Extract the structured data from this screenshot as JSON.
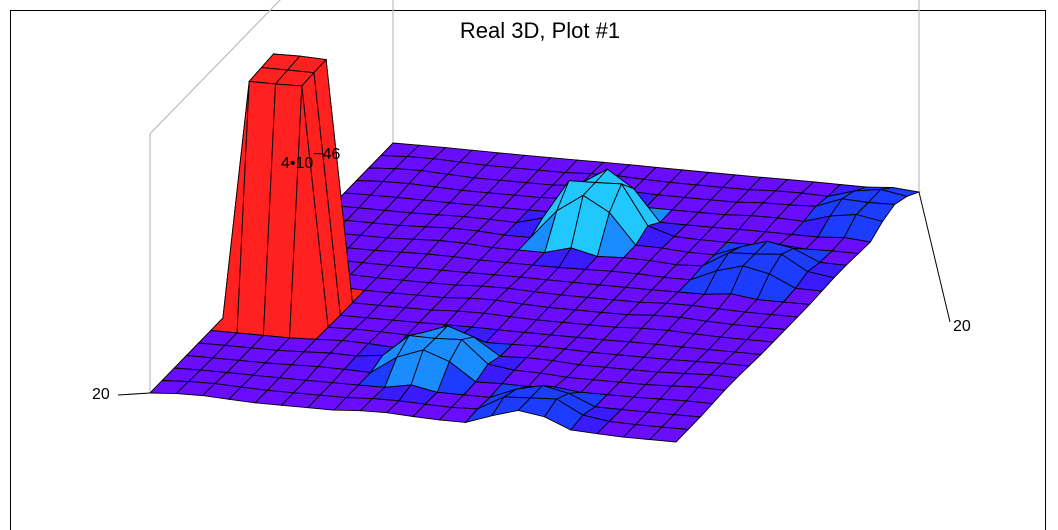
{
  "chart_data": {
    "type": "surface3d",
    "title": "Real 3D, Plot #1",
    "z_max_label": {
      "mantissa": "4•10",
      "exponent": "−46"
    },
    "x_end_label": "20",
    "y_end_label": "20",
    "grid_size": 21,
    "colormap": [
      "#6a0dff",
      "#3a1aff",
      "#1c3cff",
      "#1a8cff",
      "#20c8ff",
      "#22ff55",
      "#ff2020"
    ],
    "height_units": "relative (0–1 of z max)",
    "bumps": [
      {
        "i": 2,
        "j": 7,
        "height": 1.0,
        "note": "tall peak"
      },
      {
        "i": 9,
        "j": 4,
        "height": 0.12
      },
      {
        "i": 10,
        "j": 15,
        "height": 0.2
      },
      {
        "i": 17,
        "j": 13,
        "height": 0.08
      },
      {
        "i": 19,
        "j": 18,
        "height": 0.06
      },
      {
        "i": 14,
        "j": 1,
        "height": 0.07
      }
    ]
  }
}
